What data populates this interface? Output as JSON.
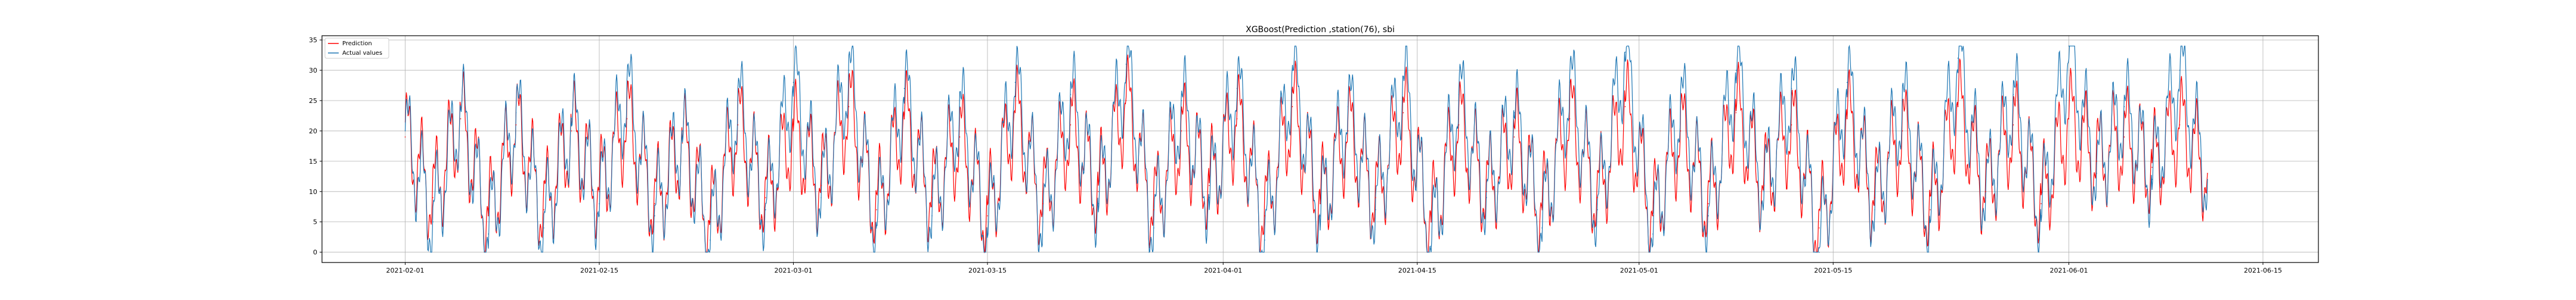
{
  "chart_data": {
    "type": "line",
    "title": "XGBoost(Prediction ,station(76), sbi",
    "xlabel": "",
    "ylabel": "",
    "xlim": [
      "2021-01-26",
      "2021-06-19"
    ],
    "ylim": [
      -1.7,
      35.7
    ],
    "grid": true,
    "legend_position": "top-left",
    "x_ticks": [
      "2021-02-01",
      "2021-02-15",
      "2021-03-01",
      "2021-03-15",
      "2021-04-01",
      "2021-04-15",
      "2021-05-01",
      "2021-05-15",
      "2021-06-01",
      "2021-06-15"
    ],
    "y_ticks": [
      0,
      5,
      10,
      15,
      20,
      25,
      30,
      35
    ],
    "x": [
      "2021-02-01",
      "2021-02-03",
      "2021-02-05",
      "2021-02-07",
      "2021-02-09",
      "2021-02-11",
      "2021-02-13",
      "2021-02-15",
      "2021-02-17",
      "2021-02-19",
      "2021-02-21",
      "2021-02-23",
      "2021-02-25",
      "2021-02-27",
      "2021-03-01",
      "2021-03-03",
      "2021-03-05",
      "2021-03-07",
      "2021-03-09",
      "2021-03-11",
      "2021-03-13",
      "2021-03-15",
      "2021-03-17",
      "2021-03-19",
      "2021-03-21",
      "2021-03-23",
      "2021-03-25",
      "2021-03-27",
      "2021-03-29",
      "2021-03-31",
      "2021-04-02",
      "2021-04-04",
      "2021-04-06",
      "2021-04-08",
      "2021-04-10",
      "2021-04-12",
      "2021-04-14",
      "2021-04-16",
      "2021-04-18",
      "2021-04-20",
      "2021-04-22",
      "2021-04-24",
      "2021-04-26",
      "2021-04-28",
      "2021-04-30",
      "2021-05-02",
      "2021-05-04",
      "2021-05-06",
      "2021-05-08",
      "2021-05-10",
      "2021-05-12",
      "2021-05-14",
      "2021-05-16",
      "2021-05-18",
      "2021-05-20",
      "2021-05-22",
      "2021-05-24",
      "2021-05-26",
      "2021-05-28",
      "2021-05-30",
      "2021-06-01",
      "2021-06-03",
      "2021-06-05",
      "2021-06-07",
      "2021-06-09",
      "2021-06-11"
    ],
    "series": [
      {
        "name": "Prediction",
        "color": "#ff0000",
        "values": [
          19,
          9,
          22,
          6,
          21,
          7,
          20,
          10,
          22,
          8,
          18,
          5,
          21,
          9,
          20,
          11,
          24,
          7,
          22,
          9,
          19,
          6,
          23,
          8,
          21,
          10,
          25,
          7,
          20,
          11,
          22,
          6,
          24,
          8,
          20,
          9,
          23,
          5,
          21,
          10,
          19,
          7,
          22,
          9,
          24,
          6,
          20,
          8,
          23,
          11,
          21,
          4,
          22,
          9,
          20,
          7,
          24,
          10,
          21,
          8,
          22,
          15,
          19,
          14,
          21,
          13
        ]
      },
      {
        "name": "Actual values",
        "color": "#1f77b4",
        "values": [
          20,
          5,
          24,
          3,
          23,
          4,
          22,
          8,
          27,
          6,
          20,
          2,
          25,
          7,
          28,
          9,
          30,
          4,
          27,
          6,
          24,
          3,
          28,
          5,
          26,
          8,
          31,
          4,
          25,
          9,
          27,
          2,
          30,
          6,
          24,
          7,
          29,
          1,
          26,
          9,
          23,
          4,
          28,
          7,
          33,
          3,
          25,
          6,
          30,
          10,
          27,
          0,
          28,
          7,
          25,
          5,
          32,
          9,
          26,
          6,
          34,
          13,
          24,
          12,
          30,
          12
        ]
      }
    ]
  }
}
